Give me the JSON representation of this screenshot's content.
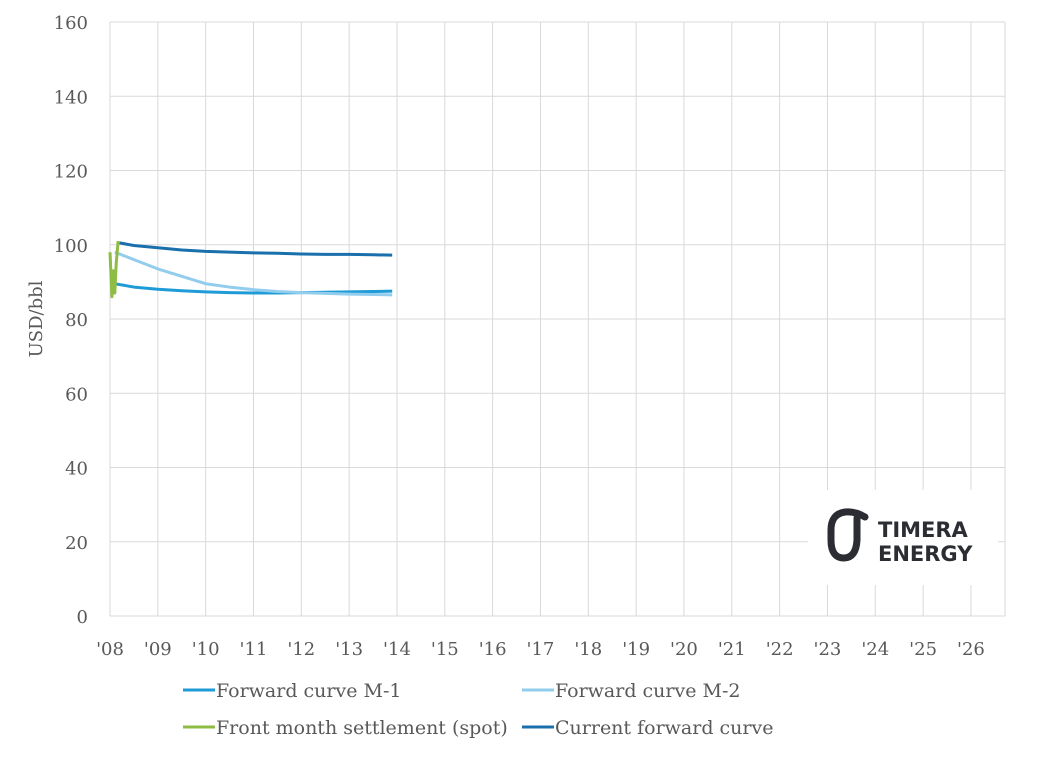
{
  "chart_data": {
    "type": "line",
    "title": "",
    "xlabel": "",
    "ylabel": "USD/bbl",
    "ylim": [
      0,
      160
    ],
    "yticks": [
      0,
      20,
      40,
      60,
      80,
      100,
      120,
      140,
      160
    ],
    "xlim": [
      2008,
      2026.7
    ],
    "xtick_labels": [
      "'08",
      "'09",
      "'10",
      "'11",
      "'12",
      "'13",
      "'14",
      "'15",
      "'16",
      "'17",
      "'18",
      "'19",
      "'20",
      "'21",
      "'22",
      "'23",
      "'24",
      "'25",
      "'26"
    ],
    "grid": true,
    "legend_position": "bottom",
    "series": [
      {
        "name": "Forward curve M-1",
        "color": "#1f9bd7",
        "x": [
          2008.1,
          2008.5,
          2009,
          2009.5,
          2010,
          2010.5,
          2011,
          2011.5,
          2012,
          2012.5,
          2013,
          2013.5,
          2013.9
        ],
        "y": [
          89.5,
          88.6,
          88,
          87.6,
          87.3,
          87.1,
          87,
          87,
          87.1,
          87.2,
          87.3,
          87.4,
          87.5
        ]
      },
      {
        "name": "Forward curve M-2",
        "color": "#92cdee",
        "x": [
          2008.1,
          2008.5,
          2009,
          2009.5,
          2010,
          2010.5,
          2011,
          2011.5,
          2012,
          2012.5,
          2013,
          2013.5,
          2013.9
        ],
        "y": [
          98,
          96,
          93.5,
          91.5,
          89.5,
          88.6,
          87.9,
          87.4,
          87.1,
          86.9,
          86.7,
          86.6,
          86.5
        ]
      },
      {
        "name": "Front month settlement (spot)",
        "color": "#8fbc45",
        "x": [
          2008.0,
          2008.04,
          2008.07,
          2008.1,
          2008.13,
          2008.17
        ],
        "y": [
          98,
          86,
          93,
          87,
          95,
          101
        ]
      },
      {
        "name": "Current forward curve",
        "color": "#1a6fad",
        "x": [
          2008.2,
          2008.5,
          2009,
          2009.5,
          2010,
          2010.5,
          2011,
          2011.5,
          2012,
          2012.5,
          2013,
          2013.5,
          2013.9
        ],
        "y": [
          100.5,
          99.8,
          99.2,
          98.6,
          98.2,
          98,
          97.8,
          97.7,
          97.5,
          97.4,
          97.4,
          97.3,
          97.2
        ]
      }
    ],
    "logo_text": "TIMERA ENERGY"
  }
}
